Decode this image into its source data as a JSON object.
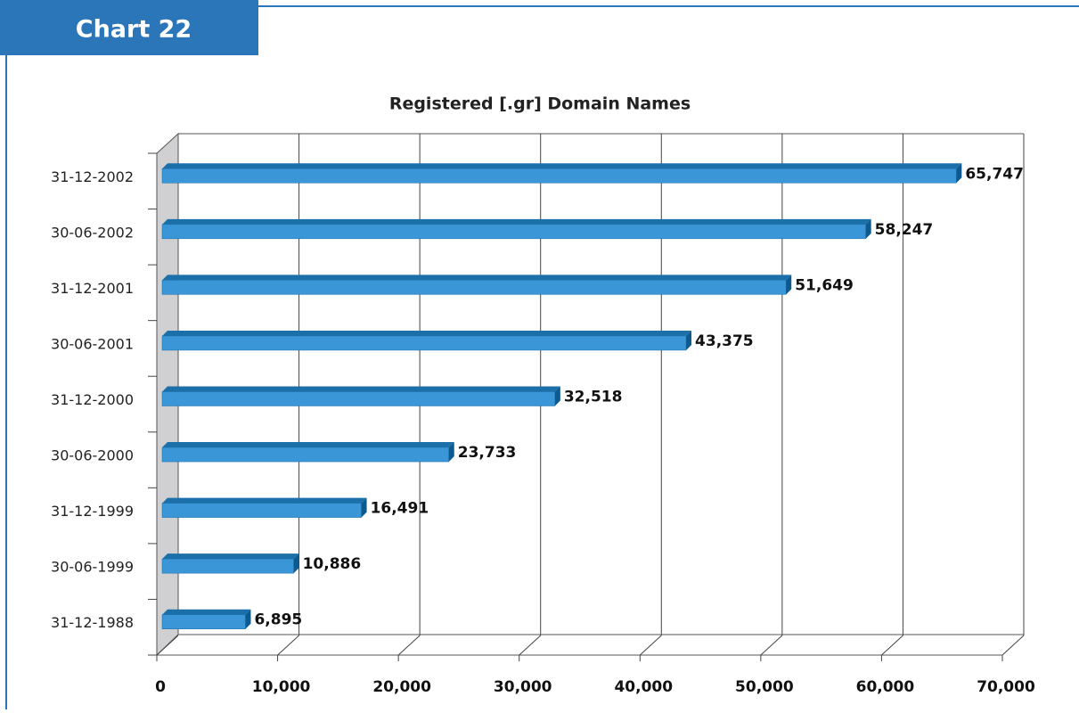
{
  "header": {
    "label": "Chart 22"
  },
  "chart_data": {
    "type": "bar",
    "orientation": "horizontal",
    "title": "Registered [.gr] Domain Names",
    "categories": [
      "31-12-1988",
      "30-06-1999",
      "31-12-1999",
      "30-06-2000",
      "31-12-2000",
      "30-06-2001",
      "31-12-2001",
      "30-06-2002",
      "31-12-2002"
    ],
    "values": [
      6895,
      10886,
      16491,
      23733,
      32518,
      43375,
      51649,
      58247,
      65747
    ],
    "value_labels": [
      "6,895",
      "10,886",
      "16,491",
      "23,733",
      "32,518",
      "43,375",
      "51,649",
      "58,247",
      "65,747"
    ],
    "color": "#3a96d6",
    "xlim": [
      0,
      70000
    ],
    "xticks": [
      0,
      {
        "value": 10000,
        "label": "10,000"
      },
      {
        "value": 20000,
        "label": "20,000"
      },
      {
        "value": 30000,
        "label": "30,000"
      },
      {
        "value": 40000,
        "label": "40,000"
      },
      {
        "value": 50000,
        "label": "50,000"
      },
      {
        "value": 60000,
        "label": "60,000"
      },
      {
        "value": 70000,
        "label": "70,000"
      }
    ],
    "grid": true
  }
}
